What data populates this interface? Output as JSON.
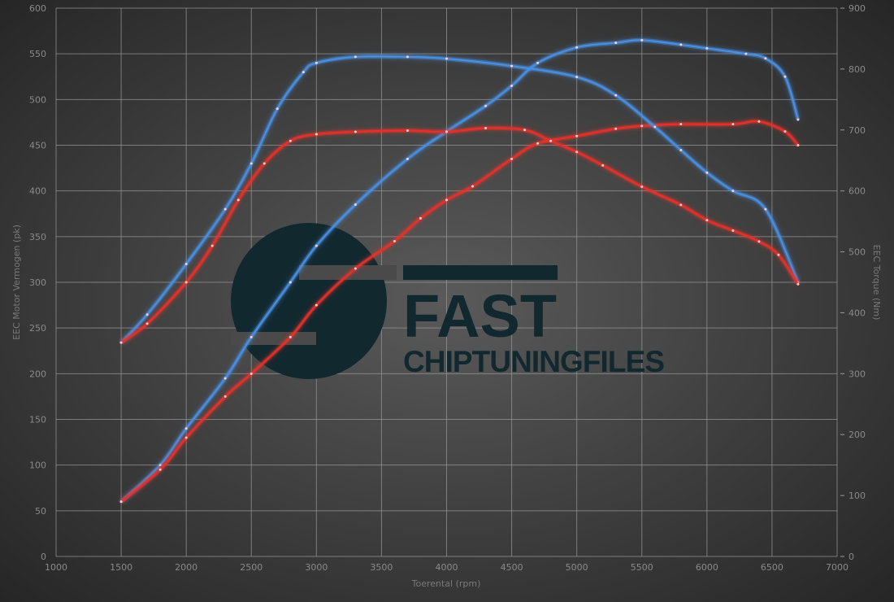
{
  "chart_data": {
    "type": "line",
    "xlabel": "Toerental (rpm)",
    "ylabel_left": "EEC Motor Vermogen (pk)",
    "ylabel_right": "EEC Torque (Nm)",
    "xlim": [
      1000,
      7000
    ],
    "ylim_left": [
      0,
      600
    ],
    "ylim_right": [
      0,
      900
    ],
    "x_ticks": [
      1000,
      1500,
      2000,
      2500,
      3000,
      3500,
      4000,
      4500,
      5000,
      5500,
      6000,
      6500,
      7000
    ],
    "y_left_ticks": [
      0,
      50,
      100,
      150,
      200,
      250,
      300,
      350,
      400,
      450,
      500,
      550,
      600
    ],
    "y_right_ticks": [
      0,
      100,
      200,
      300,
      400,
      500,
      600,
      700,
      800,
      900
    ],
    "grid": true,
    "colors": {
      "tuned": "#4a90e2",
      "stock": "#e8302a"
    },
    "series": [
      {
        "axis": "left",
        "color": "#4a90e2",
        "x": [
          1500,
          1800,
          2000,
          2300,
          2500,
          2800,
          3000,
          3300,
          3700,
          4000,
          4300,
          4500,
          4700,
          5000,
          5300,
          5500,
          5800,
          6000,
          6300,
          6450,
          6600,
          6700
        ],
        "y": [
          60,
          100,
          140,
          195,
          240,
          300,
          340,
          385,
          435,
          465,
          493,
          515,
          540,
          557,
          562,
          565,
          560,
          556,
          550,
          545,
          525,
          478
        ]
      },
      {
        "axis": "left",
        "color": "#e8302a",
        "x": [
          1500,
          1800,
          2000,
          2300,
          2500,
          2800,
          3000,
          3300,
          3600,
          3800,
          4000,
          4200,
          4500,
          4700,
          5000,
          5300,
          5500,
          5800,
          6200,
          6400,
          6600,
          6700
        ],
        "y": [
          60,
          95,
          130,
          175,
          200,
          240,
          275,
          315,
          345,
          370,
          390,
          405,
          435,
          452,
          460,
          468,
          471,
          473,
          473,
          476,
          465,
          450
        ]
      },
      {
        "axis": "right",
        "color": "#4a90e2",
        "x": [
          1500,
          1700,
          2000,
          2300,
          2500,
          2700,
          2900,
          3000,
          3300,
          3700,
          4000,
          4500,
          5000,
          5300,
          5600,
          5800,
          6000,
          6200,
          6450,
          6700
        ],
        "y": [
          351,
          397,
          480,
          570,
          645,
          735,
          795,
          810,
          820,
          820,
          817,
          805,
          787,
          757,
          705,
          667,
          630,
          600,
          570,
          450
        ]
      },
      {
        "axis": "right",
        "color": "#e8302a",
        "x": [
          1500,
          1700,
          2000,
          2200,
          2400,
          2600,
          2800,
          3000,
          3300,
          3700,
          4000,
          4300,
          4600,
          4800,
          5000,
          5200,
          5500,
          5800,
          6000,
          6200,
          6400,
          6550,
          6700
        ],
        "y": [
          351,
          382,
          450,
          510,
          585,
          645,
          682,
          693,
          697,
          699,
          697,
          703,
          700,
          682,
          664,
          642,
          607,
          577,
          552,
          535,
          517,
          495,
          447
        ]
      }
    ]
  },
  "logo": {
    "line1": "FAST",
    "line2": "CHIPTUNINGFILES",
    "color": "#12282f"
  }
}
